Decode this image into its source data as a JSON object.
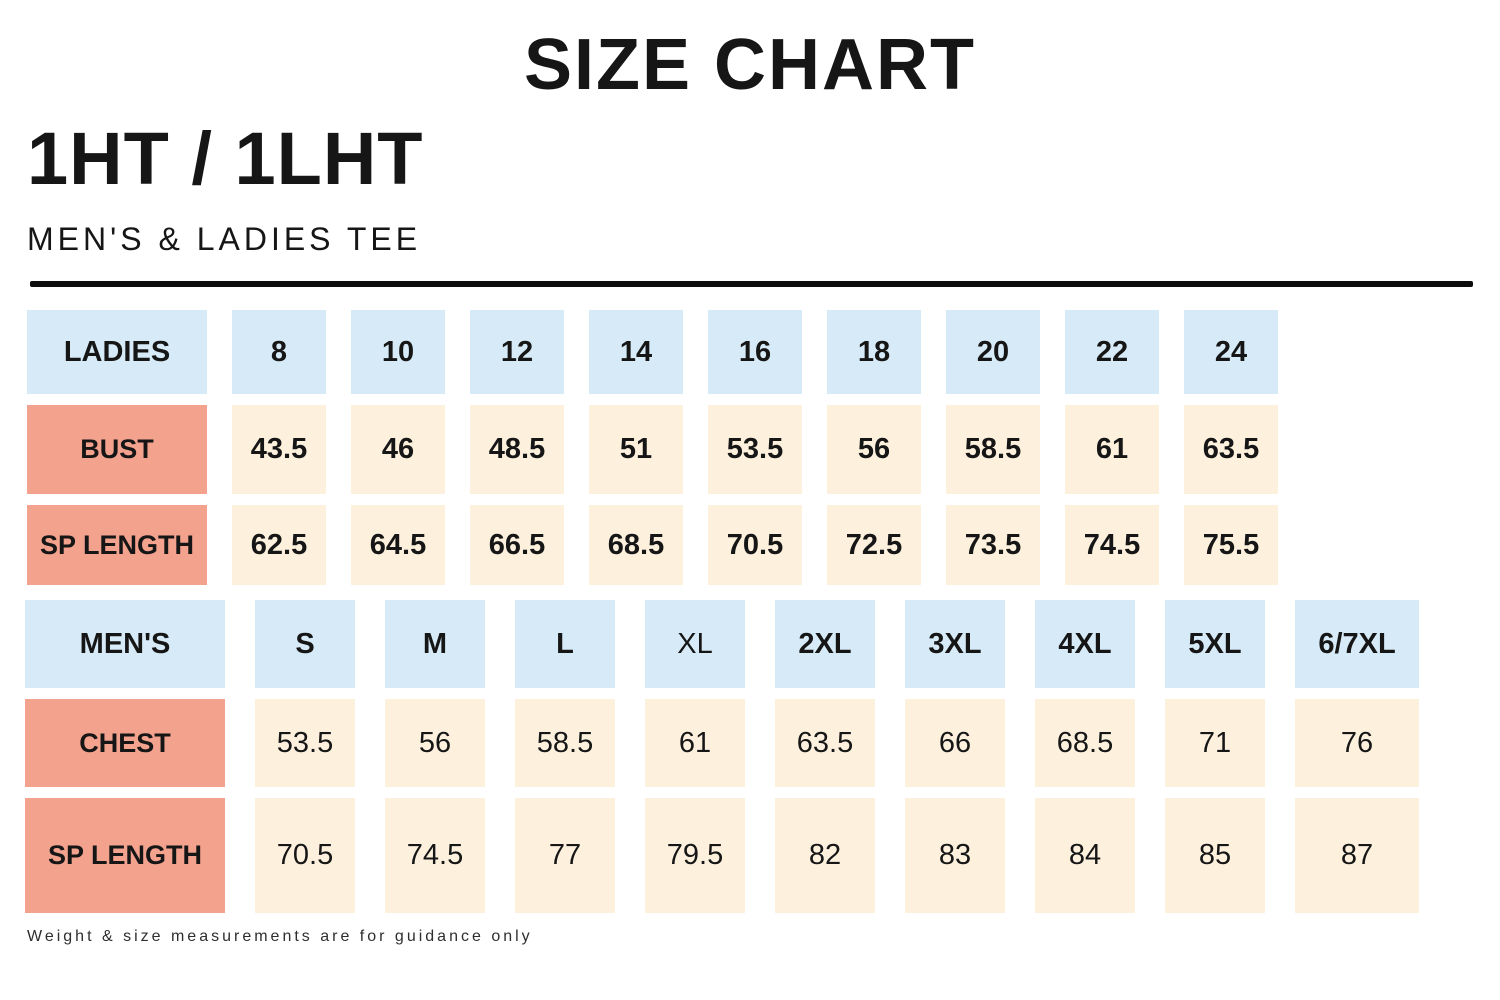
{
  "header": {
    "title": "SIZE CHART",
    "product_code": "1HT / 1LHT",
    "subtitle": "MEN'S & LADIES TEE"
  },
  "footer": {
    "note": "Weight & size measurements are for guidance only"
  },
  "colors": {
    "size_header_blue": "#d6ebf7",
    "row_label_salmon": "#f3a28e",
    "value_cell_cream": "#fdf1de",
    "text_black": "#161616",
    "divider_black": "#0d0d0d"
  },
  "chart_data": [
    {
      "type": "table",
      "title": "LADIES",
      "columns": [
        "8",
        "10",
        "12",
        "14",
        "16",
        "18",
        "20",
        "22",
        "24"
      ],
      "rows": [
        {
          "label": "BUST",
          "values": [
            "43.5",
            "46",
            "48.5",
            "51",
            "53.5",
            "56",
            "58.5",
            "61",
            "63.5"
          ]
        },
        {
          "label": "SP LENGTH",
          "values": [
            "62.5",
            "64.5",
            "66.5",
            "68.5",
            "70.5",
            "72.5",
            "73.5",
            "74.5",
            "75.5"
          ]
        }
      ],
      "regular_weight_columns": []
    },
    {
      "type": "table",
      "title": "MEN'S",
      "columns": [
        "S",
        "M",
        "L",
        "XL",
        "2XL",
        "3XL",
        "4XL",
        "5XL",
        "6/7XL"
      ],
      "rows": [
        {
          "label": "CHEST",
          "values": [
            "53.5",
            "56",
            "58.5",
            "61",
            "63.5",
            "66",
            "68.5",
            "71",
            "76"
          ]
        },
        {
          "label": "SP LENGTH",
          "values": [
            "70.5",
            "74.5",
            "77",
            "79.5",
            "82",
            "83",
            "84",
            "85",
            "87"
          ]
        }
      ],
      "regular_weight_columns": [
        "XL"
      ]
    }
  ]
}
